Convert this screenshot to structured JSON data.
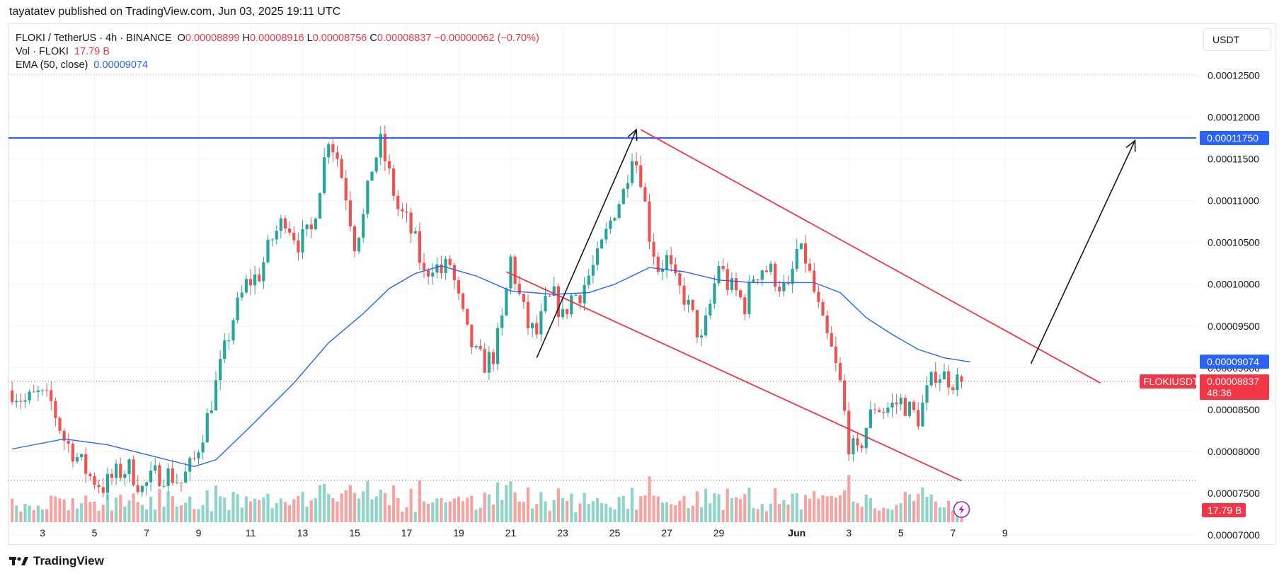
{
  "header": {
    "attribution": "tayatatev published on TradingView.com, Jun 03, 2025 19:11 UTC"
  },
  "legend": {
    "symbol": "FLOKI / TetherUS · 4h · BINANCE",
    "o_label": "O",
    "o_value": "0.00008899",
    "h_label": "H",
    "h_value": "0.00008916",
    "l_label": "L",
    "l_value": "0.00008756",
    "c_label": "C",
    "c_value": "0.00008837",
    "change": "−0.00000062 (−0.70%)",
    "vol_label": "Vol · FLOKI",
    "vol_value": "17.79 B",
    "ema_label": "EMA (50, close)",
    "ema_value": "0.00009074"
  },
  "currency_button": "USDT",
  "footer": {
    "brand": "TradingView"
  },
  "colors": {
    "up": "#26a69a",
    "down": "#ef5350",
    "up_vol": "#8fd3c9",
    "down_vol": "#f5a3a1",
    "ema": "#2962ff",
    "level": "#2962ff",
    "channel": "#f23645",
    "arrow": "#131722"
  },
  "chart_data": {
    "type": "candlestick",
    "symbol": "FLOKIUSDT",
    "interval": "4h",
    "ylim": [
      6.9e-05,
      0.0001285
    ],
    "y_ticks": [
      "0.00012500",
      "0.00012000",
      "0.00011500",
      "0.00011000",
      "0.00010500",
      "0.00010000",
      "0.00009500",
      "0.00009000",
      "0.00008500",
      "0.00008000",
      "0.00007500",
      "0.00007000"
    ],
    "x_ticks": [
      {
        "label": "3",
        "t": 0
      },
      {
        "label": "5",
        "t": 12
      },
      {
        "label": "7",
        "t": 24
      },
      {
        "label": "9",
        "t": 36
      },
      {
        "label": "11",
        "t": 48
      },
      {
        "label": "13",
        "t": 60
      },
      {
        "label": "15",
        "t": 72
      },
      {
        "label": "17",
        "t": 84
      },
      {
        "label": "19",
        "t": 96
      },
      {
        "label": "21",
        "t": 108
      },
      {
        "label": "23",
        "t": 120
      },
      {
        "label": "25",
        "t": 132
      },
      {
        "label": "27",
        "t": 144
      },
      {
        "label": "29",
        "t": 156
      },
      {
        "label": "Jun",
        "t": 174
      },
      {
        "label": "3",
        "t": 186
      },
      {
        "label": "5",
        "t": 198
      },
      {
        "label": "7",
        "t": 210
      },
      {
        "label": "9",
        "t": 222
      }
    ],
    "close_series": [
      {
        "t": -7,
        "c": 8.73e-05
      },
      {
        "t": -4,
        "c": 8.6e-05
      },
      {
        "t": -1,
        "c": 8.68e-05
      },
      {
        "t": 2,
        "c": 8.58e-05
      },
      {
        "t": 5,
        "c": 8.15e-05
      },
      {
        "t": 8,
        "c": 7.93e-05
      },
      {
        "t": 11,
        "c": 7.7e-05
      },
      {
        "t": 14,
        "c": 7.58e-05
      },
      {
        "t": 17,
        "c": 7.73e-05
      },
      {
        "t": 20,
        "c": 7.8e-05
      },
      {
        "t": 23,
        "c": 7.55e-05
      },
      {
        "t": 26,
        "c": 7.72e-05
      },
      {
        "t": 29,
        "c": 7.73e-05
      },
      {
        "t": 32,
        "c": 7.63e-05
      },
      {
        "t": 35,
        "c": 7.9e-05
      },
      {
        "t": 38,
        "c": 8.4e-05
      },
      {
        "t": 41,
        "c": 9e-05
      },
      {
        "t": 44,
        "c": 9.6e-05
      },
      {
        "t": 47,
        "c": 0.0001
      },
      {
        "t": 50,
        "c": 0.0001012
      },
      {
        "t": 53,
        "c": 0.0001055
      },
      {
        "t": 56,
        "c": 0.000108
      },
      {
        "t": 59,
        "c": 0.000105
      },
      {
        "t": 62,
        "c": 0.0001063
      },
      {
        "t": 64,
        "c": 0.000112
      },
      {
        "t": 66,
        "c": 0.0001178
      },
      {
        "t": 68,
        "c": 0.0001152
      },
      {
        "t": 70,
        "c": 0.0001108
      },
      {
        "t": 72,
        "c": 0.000105
      },
      {
        "t": 74,
        "c": 0.000108
      },
      {
        "t": 76,
        "c": 0.000114
      },
      {
        "t": 78,
        "c": 0.0001168
      },
      {
        "t": 80,
        "c": 0.000113
      },
      {
        "t": 82,
        "c": 0.000109
      },
      {
        "t": 84,
        "c": 0.0001075
      },
      {
        "t": 86,
        "c": 0.000105
      },
      {
        "t": 88,
        "c": 0.000101
      },
      {
        "t": 90,
        "c": 0.0001025
      },
      {
        "t": 92,
        "c": 0.0001015
      },
      {
        "t": 94,
        "c": 0.0001025
      },
      {
        "t": 96,
        "c": 9.8e-05
      },
      {
        "t": 98,
        "c": 9.4e-05
      },
      {
        "t": 100,
        "c": 9.15e-05
      },
      {
        "t": 102,
        "c": 9.05e-05
      },
      {
        "t": 104,
        "c": 9.15e-05
      },
      {
        "t": 106,
        "c": 9.55e-05
      },
      {
        "t": 108,
        "c": 0.000103
      },
      {
        "t": 110,
        "c": 9.85e-05
      },
      {
        "t": 112,
        "c": 9.5e-05
      },
      {
        "t": 114,
        "c": 9.4e-05
      },
      {
        "t": 116,
        "c": 9.75e-05
      },
      {
        "t": 118,
        "c": 9.85e-05
      },
      {
        "t": 120,
        "c": 9.6e-05
      },
      {
        "t": 122,
        "c": 9.85e-05
      },
      {
        "t": 124,
        "c": 9.9e-05
      },
      {
        "t": 126,
        "c": 0.000101
      },
      {
        "t": 128,
        "c": 0.000103
      },
      {
        "t": 130,
        "c": 0.000106
      },
      {
        "t": 132,
        "c": 0.000109
      },
      {
        "t": 134,
        "c": 0.000111
      },
      {
        "t": 136,
        "c": 0.000116
      },
      {
        "t": 138,
        "c": 0.000113
      },
      {
        "t": 140,
        "c": 0.000106
      },
      {
        "t": 142,
        "c": 0.000102
      },
      {
        "t": 144,
        "c": 0.000103
      },
      {
        "t": 146,
        "c": 0.0001
      },
      {
        "t": 148,
        "c": 9.85e-05
      },
      {
        "t": 150,
        "c": 9.6e-05
      },
      {
        "t": 152,
        "c": 9.3e-05
      },
      {
        "t": 154,
        "c": 9.75e-05
      },
      {
        "t": 156,
        "c": 0.0001025
      },
      {
        "t": 158,
        "c": 0.0001
      },
      {
        "t": 160,
        "c": 9.9e-05
      },
      {
        "t": 162,
        "c": 9.75e-05
      },
      {
        "t": 164,
        "c": 0.000101
      },
      {
        "t": 166,
        "c": 0.000102
      },
      {
        "t": 168,
        "c": 0.0001015
      },
      {
        "t": 170,
        "c": 0.0001
      },
      {
        "t": 172,
        "c": 9.9e-05
      },
      {
        "t": 174,
        "c": 0.000104
      },
      {
        "t": 176,
        "c": 0.000103
      },
      {
        "t": 178,
        "c": 9.9e-05
      },
      {
        "t": 180,
        "c": 9.5e-05
      },
      {
        "t": 182,
        "c": 9.2e-05
      },
      {
        "t": 184,
        "c": 8.8e-05
      },
      {
        "t": 186,
        "c": 8.1e-05
      },
      {
        "t": 188,
        "c": 7.95e-05
      },
      {
        "t": 190,
        "c": 8.3e-05
      },
      {
        "t": 192,
        "c": 8.55e-05
      },
      {
        "t": 194,
        "c": 8.5e-05
      },
      {
        "t": 196,
        "c": 8.55e-05
      },
      {
        "t": 198,
        "c": 8.6e-05
      },
      {
        "t": 200,
        "c": 8.5e-05
      },
      {
        "t": 202,
        "c": 8.4e-05
      },
      {
        "t": 204,
        "c": 8.7e-05
      },
      {
        "t": 206,
        "c": 8.95e-05
      },
      {
        "t": 208,
        "c": 8.9e-05
      },
      {
        "t": 210,
        "c": 8.85e-05
      },
      {
        "t": 212,
        "c": 8.84e-05
      }
    ],
    "ema": [
      {
        "t": -7,
        "v": 8.03e-05
      },
      {
        "t": 5,
        "v": 8.15e-05
      },
      {
        "t": 15,
        "v": 8.08e-05
      },
      {
        "t": 25,
        "v": 7.95e-05
      },
      {
        "t": 35,
        "v": 7.82e-05
      },
      {
        "t": 40,
        "v": 7.9e-05
      },
      {
        "t": 48,
        "v": 8.3e-05
      },
      {
        "t": 58,
        "v": 8.82e-05
      },
      {
        "t": 66,
        "v": 9.3e-05
      },
      {
        "t": 74,
        "v": 9.65e-05
      },
      {
        "t": 80,
        "v": 9.95e-05
      },
      {
        "t": 86,
        "v": 0.0001013
      },
      {
        "t": 92,
        "v": 0.0001022
      },
      {
        "t": 100,
        "v": 0.000101
      },
      {
        "t": 108,
        "v": 9.92e-05
      },
      {
        "t": 118,
        "v": 9.88e-05
      },
      {
        "t": 126,
        "v": 9.9e-05
      },
      {
        "t": 132,
        "v": 0.0001
      },
      {
        "t": 140,
        "v": 0.000102
      },
      {
        "t": 148,
        "v": 0.0001015
      },
      {
        "t": 156,
        "v": 0.0001005
      },
      {
        "t": 164,
        "v": 0.0001002
      },
      {
        "t": 172,
        "v": 0.0001002
      },
      {
        "t": 178,
        "v": 0.0001002
      },
      {
        "t": 184,
        "v": 9.9e-05
      },
      {
        "t": 190,
        "v": 9.6e-05
      },
      {
        "t": 196,
        "v": 9.4e-05
      },
      {
        "t": 202,
        "v": 9.22e-05
      },
      {
        "t": 208,
        "v": 9.12e-05
      },
      {
        "t": 214,
        "v": 9.07e-05
      }
    ],
    "horizontal_level": 0.0001175,
    "channel_upper": [
      {
        "t": 138,
        "v": 0.0001185
      },
      {
        "t": 244,
        "v": 8.82e-05
      }
    ],
    "channel_lower": [
      {
        "t": 107,
        "v": 0.0001015
      },
      {
        "t": 212,
        "v": 7.65e-05
      }
    ],
    "arrows": [
      {
        "from": {
          "t": 114,
          "v": 9.12e-05
        },
        "to": {
          "t": 137,
          "v": 0.0001185
        }
      },
      {
        "from": {
          "t": 228,
          "v": 9.05e-05
        },
        "to": {
          "t": 252,
          "v": 0.0001172
        }
      }
    ],
    "price_labels": [
      {
        "value": "0.00011750",
        "kind": "level"
      },
      {
        "value": "0.00009074",
        "kind": "ema"
      },
      {
        "value": "0.00008837",
        "kind": "last",
        "symbol": "FLOKIUSDT",
        "countdown": "48:36"
      },
      {
        "value": "17.79 B",
        "kind": "volume"
      }
    ],
    "volume": {
      "last": "17.79 B"
    }
  }
}
